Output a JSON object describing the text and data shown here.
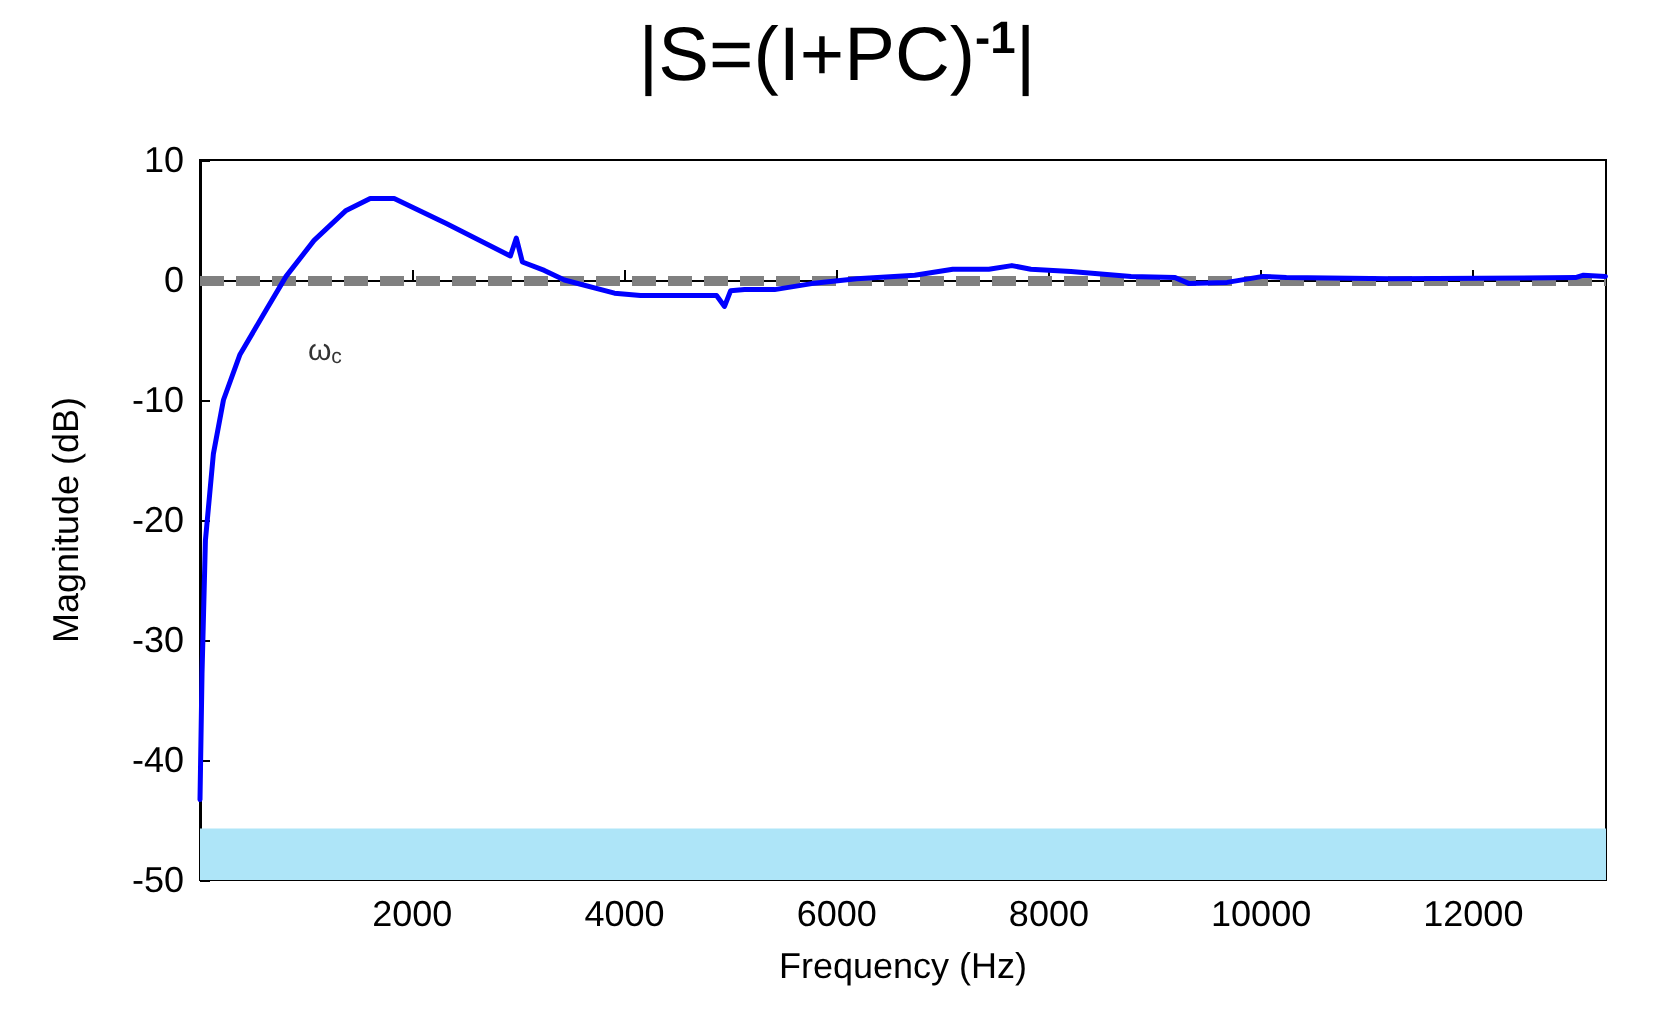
{
  "chart_data": {
    "type": "line",
    "title": "|S=(I+PC)$^{-1}$|",
    "xlabel": "Frequency (Hz)",
    "ylabel": "Magnitude (dB)",
    "x": [
      0,
      19,
      51,
      126,
      221,
      377,
      623,
      811,
      1075,
      1377,
      1604,
      1830,
      2321,
      2925,
      2981,
      3038,
      3245,
      3434,
      3906,
      4151,
      4868,
      4943,
      5000,
      5132,
      5415,
      5764,
      6189,
      6736,
      7094,
      7434,
      7651,
      7830,
      8208,
      8774,
      9189,
      9321,
      9679,
      10019,
      10238,
      11226,
      12962,
      13038,
      13245
    ],
    "series": [
      {
        "color": "#0000ff",
        "values": [
          -43.3,
          -32.8,
          -21.7,
          -14.5,
          -10,
          -6.2,
          -2.5,
          0.3,
          3.3,
          5.8,
          6.8,
          6.8,
          4.7,
          2,
          3.5,
          1.5,
          0.8,
          0,
          -1.1,
          -1.3,
          -1.3,
          -2.2,
          -0.9,
          -0.8,
          -0.8,
          -0.3,
          0.1,
          0.4,
          0.9,
          0.9,
          1.2,
          0.9,
          0.7,
          0.3,
          0.2,
          -0.3,
          -0.2,
          0.3,
          0.2,
          0.1,
          0.2,
          0.4,
          0.3
        ]
      }
    ],
    "xlim": [
      0,
      13250
    ],
    "xticks": [
      2000,
      4000,
      6000,
      8000,
      10000,
      12000
    ],
    "ylim": [
      -50,
      10
    ],
    "yticks": [
      -50,
      -40,
      -30,
      -20,
      -10,
      0,
      10
    ],
    "ref_lines": [
      {
        "axis": "y",
        "value": 0,
        "color": "#808080",
        "line_style": "dashed"
      }
    ],
    "bands": [
      {
        "axis": "y",
        "from": -50,
        "to": -45.7,
        "color": "#aee5f8"
      }
    ],
    "annotations": [
      {
        "text": "ω$_{c}$",
        "x": 800,
        "y": 0
      }
    ],
    "grid": false,
    "marker": "none",
    "line_style": "solid"
  }
}
